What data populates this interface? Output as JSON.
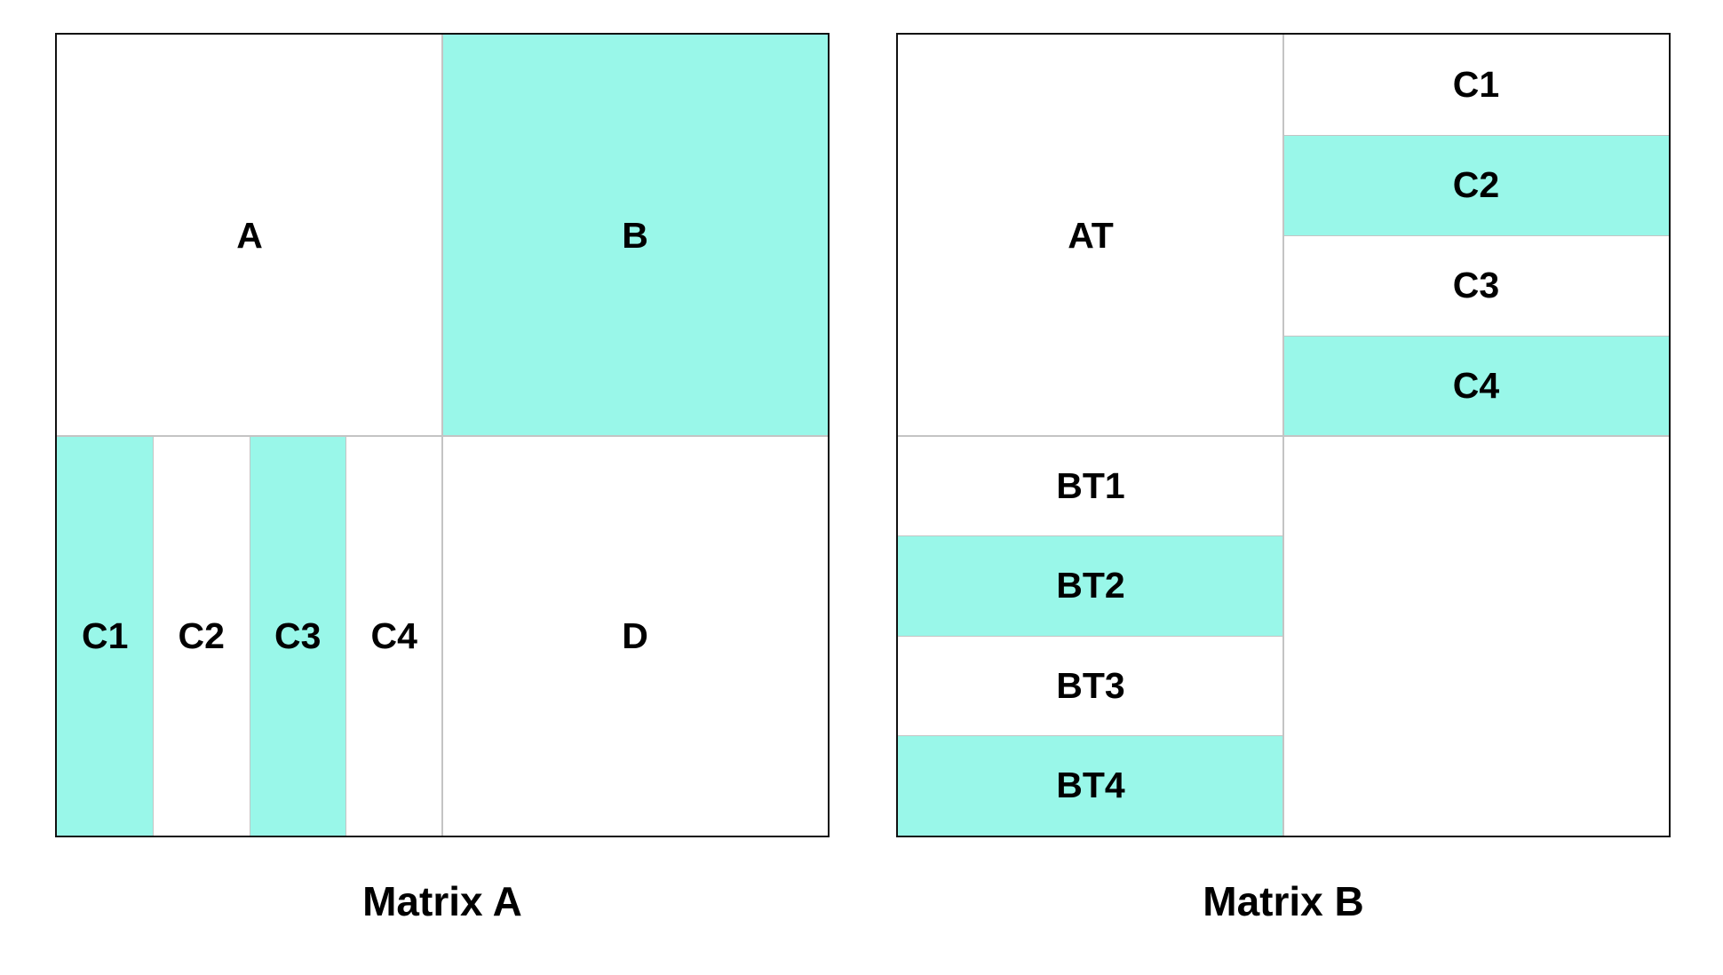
{
  "matrix_a": {
    "caption": "Matrix A",
    "blocks": {
      "a": "A",
      "b": "B",
      "d": "D"
    },
    "columns": [
      "C1",
      "C2",
      "C3",
      "C4"
    ]
  },
  "matrix_b": {
    "caption": "Matrix B",
    "blocks": {
      "at": "AT",
      "bottom_right": ""
    },
    "rows_right": [
      "C1",
      "C2",
      "C3",
      "C4"
    ],
    "rows_left": [
      "BT1",
      "BT2",
      "BT3",
      "BT4"
    ]
  },
  "colors": {
    "highlight": "#99f7e9",
    "base": "#ffffff",
    "border": "#111111",
    "divider": "#c4c4c4"
  }
}
